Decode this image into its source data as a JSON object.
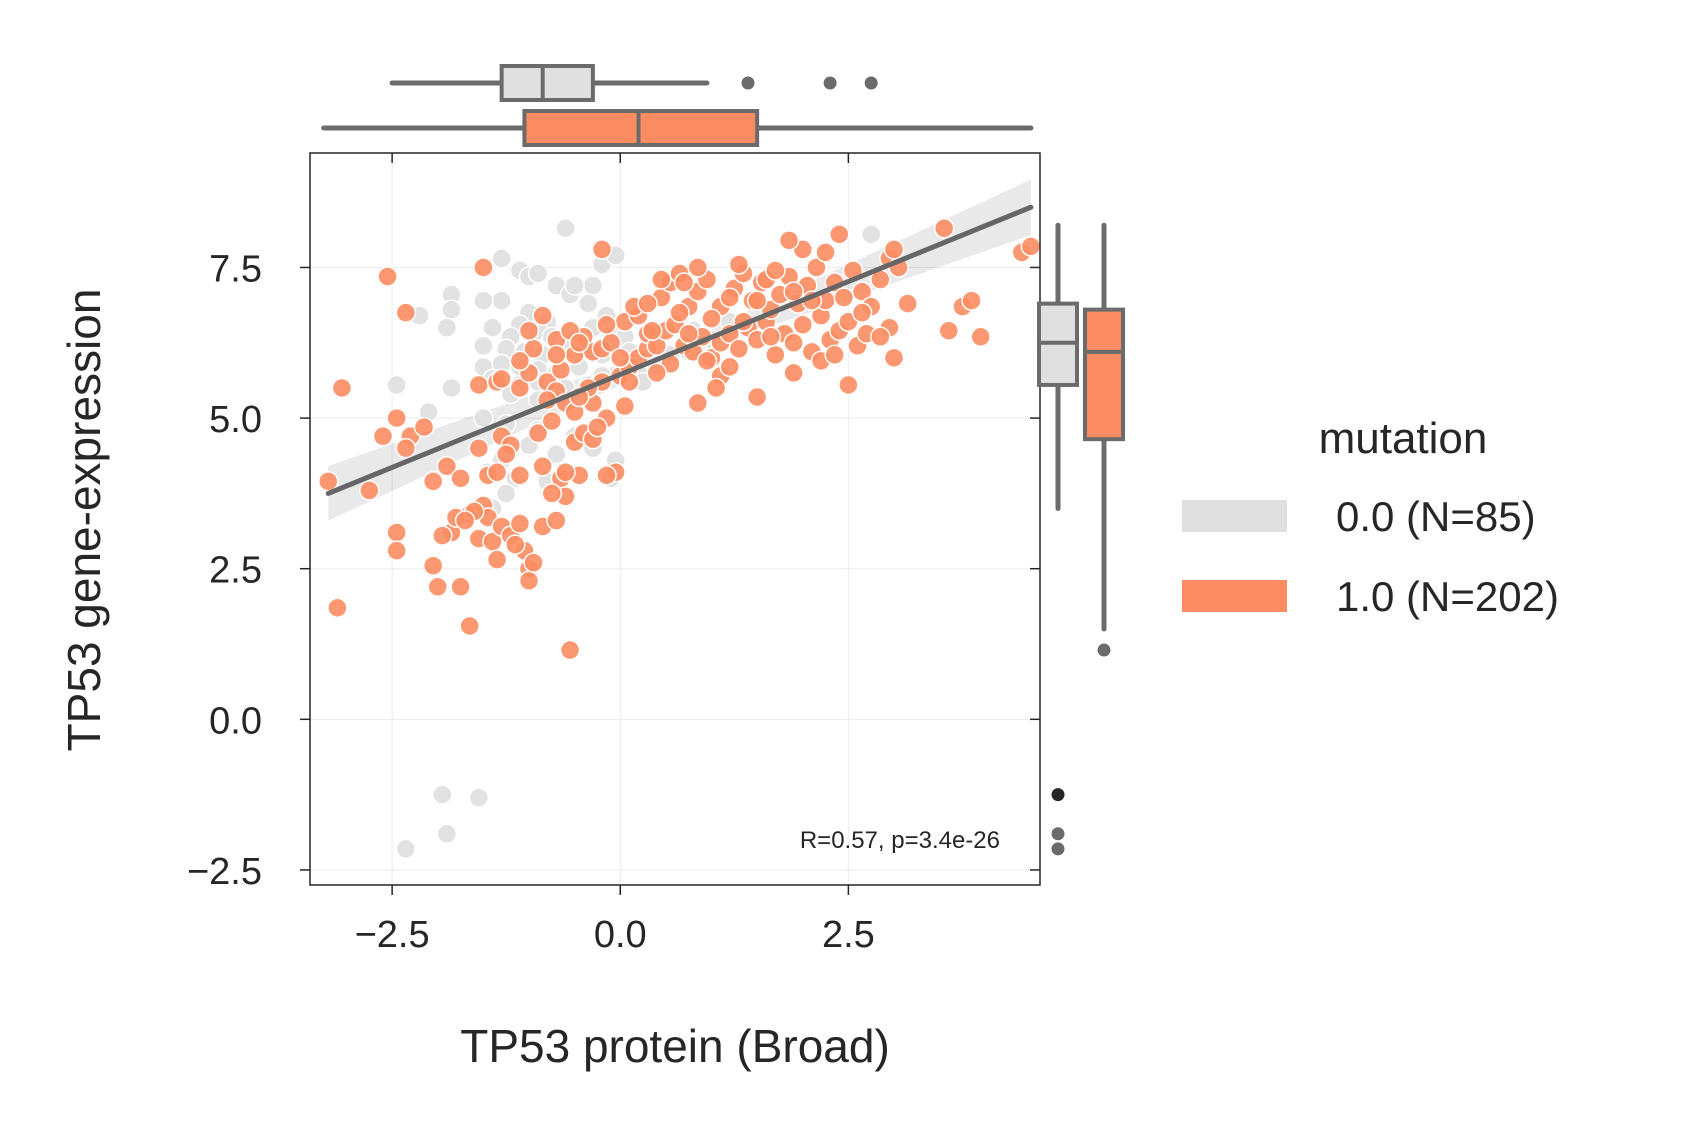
{
  "chart_data": {
    "type": "scatter",
    "xlabel": "TP53 protein (Broad)",
    "ylabel": "TP53 gene-expression",
    "xlim": [
      -3.4,
      4.6
    ],
    "ylim": [
      -2.75,
      9.4
    ],
    "xticks": [
      -2.5,
      0.0,
      2.5
    ],
    "xtick_labels": [
      "−2.5",
      "0.0",
      "2.5"
    ],
    "yticks": [
      -2.5,
      0.0,
      2.5,
      5.0,
      7.5
    ],
    "ytick_labels": [
      "−2.5",
      "0.0",
      "2.5",
      "5.0",
      "7.5"
    ],
    "grid": true,
    "annotation": "R=0.57, p=3.4e-26",
    "legend": {
      "title": "mutation",
      "placement": "right",
      "entries": [
        {
          "label": "0.0 (N=85)",
          "color": "#e0e0e0"
        },
        {
          "label": "1.0 (N=202)",
          "color": "#fc8d62"
        }
      ]
    },
    "regression": {
      "x": [
        -3.2,
        4.5
      ],
      "y": [
        3.75,
        8.5
      ],
      "color": "#666666"
    },
    "series": [
      {
        "name": "0.0 (N=85)",
        "color": "#e0e0e0",
        "points": [
          [
            -0.6,
            8.15
          ],
          [
            -0.2,
            7.55
          ],
          [
            -0.05,
            7.7
          ],
          [
            -1.3,
            7.65
          ],
          [
            -1.1,
            7.45
          ],
          [
            -1.0,
            7.35
          ],
          [
            -0.9,
            7.4
          ],
          [
            -0.7,
            7.2
          ],
          [
            -0.55,
            7.05
          ],
          [
            -1.85,
            7.05
          ],
          [
            -1.3,
            6.95
          ],
          [
            -1.5,
            6.95
          ],
          [
            -0.3,
            7.2
          ],
          [
            -0.5,
            7.2
          ],
          [
            -1.85,
            6.8
          ],
          [
            -2.2,
            6.7
          ],
          [
            -1.0,
            6.75
          ],
          [
            -1.1,
            6.55
          ],
          [
            -0.8,
            6.6
          ],
          [
            -1.9,
            6.5
          ],
          [
            -1.4,
            6.5
          ],
          [
            -1.2,
            6.35
          ],
          [
            -0.9,
            6.45
          ],
          [
            -0.75,
            6.35
          ],
          [
            -0.5,
            6.3
          ],
          [
            -0.3,
            6.5
          ],
          [
            -0.1,
            6.4
          ],
          [
            0.05,
            6.35
          ],
          [
            -1.5,
            6.2
          ],
          [
            -1.25,
            6.15
          ],
          [
            -1.05,
            6.1
          ],
          [
            -0.85,
            6.05
          ],
          [
            -0.6,
            6.15
          ],
          [
            -0.4,
            6.05
          ],
          [
            -0.2,
            6.05
          ],
          [
            0.1,
            6.1
          ],
          [
            0.35,
            5.95
          ],
          [
            0.55,
            6.05
          ],
          [
            0.75,
            6.1
          ],
          [
            1.0,
            6.3
          ],
          [
            -1.5,
            5.85
          ],
          [
            -1.3,
            5.9
          ],
          [
            -1.1,
            5.85
          ],
          [
            -0.9,
            5.8
          ],
          [
            -0.7,
            5.75
          ],
          [
            -0.45,
            5.85
          ],
          [
            -0.2,
            5.7
          ],
          [
            0.2,
            5.75
          ],
          [
            0.4,
            5.85
          ],
          [
            -1.4,
            5.65
          ],
          [
            -1.1,
            5.55
          ],
          [
            -0.9,
            5.6
          ],
          [
            -0.6,
            5.5
          ],
          [
            -0.35,
            5.55
          ],
          [
            0.25,
            5.6
          ],
          [
            -2.45,
            5.55
          ],
          [
            -1.85,
            5.5
          ],
          [
            -1.2,
            5.4
          ],
          [
            -0.9,
            5.3
          ],
          [
            -0.6,
            5.25
          ],
          [
            -2.1,
            5.1
          ],
          [
            -1.5,
            5.0
          ],
          [
            -1.25,
            4.9
          ],
          [
            -0.9,
            4.8
          ],
          [
            -0.5,
            4.7
          ],
          [
            -1.0,
            4.55
          ],
          [
            -0.7,
            4.4
          ],
          [
            -0.3,
            4.5
          ],
          [
            -1.3,
            4.3
          ],
          [
            -0.05,
            4.3
          ],
          [
            -1.45,
            4.1
          ],
          [
            -1.15,
            4.0
          ],
          [
            -0.8,
            3.95
          ],
          [
            -0.1,
            4.0
          ],
          [
            -1.25,
            3.75
          ],
          [
            -1.4,
            3.5
          ],
          [
            1.2,
            6.6
          ],
          [
            0.8,
            6.45
          ],
          [
            -0.15,
            6.7
          ],
          [
            -0.35,
            6.9
          ],
          [
            -1.95,
            -1.25
          ],
          [
            -1.55,
            -1.3
          ],
          [
            -1.9,
            -1.9
          ],
          [
            -2.35,
            -2.15
          ],
          [
            2.75,
            8.05
          ]
        ]
      },
      {
        "name": "1.0 (N=202)",
        "color": "#fc8d62",
        "points": [
          [
            -3.05,
            5.5
          ],
          [
            -2.35,
            6.75
          ],
          [
            -3.2,
            3.95
          ],
          [
            -2.75,
            3.8
          ],
          [
            -2.45,
            3.1
          ],
          [
            -2.45,
            2.8
          ],
          [
            -3.1,
            1.85
          ],
          [
            -2.45,
            5.0
          ],
          [
            -2.3,
            4.7
          ],
          [
            -2.15,
            4.85
          ],
          [
            -2.05,
            2.55
          ],
          [
            -2.0,
            2.2
          ],
          [
            -1.75,
            2.2
          ],
          [
            -1.65,
            1.55
          ],
          [
            -2.05,
            3.95
          ],
          [
            -1.9,
            4.2
          ],
          [
            -1.75,
            4.0
          ],
          [
            -1.85,
            3.1
          ],
          [
            -1.65,
            3.4
          ],
          [
            -1.55,
            3.0
          ],
          [
            -1.5,
            3.55
          ],
          [
            -1.45,
            3.35
          ],
          [
            -1.4,
            2.95
          ],
          [
            -1.35,
            2.65
          ],
          [
            -1.3,
            3.2
          ],
          [
            -1.2,
            3.05
          ],
          [
            -1.05,
            2.8
          ],
          [
            -1.0,
            2.5
          ],
          [
            -1.0,
            2.3
          ],
          [
            -0.85,
            3.2
          ],
          [
            -1.55,
            4.5
          ],
          [
            -1.45,
            4.05
          ],
          [
            -1.35,
            4.1
          ],
          [
            -1.3,
            4.7
          ],
          [
            -1.2,
            4.55
          ],
          [
            -1.1,
            4.05
          ],
          [
            -1.55,
            5.55
          ],
          [
            -1.35,
            5.6
          ],
          [
            -1.1,
            5.5
          ],
          [
            -1.0,
            5.75
          ],
          [
            -0.8,
            5.6
          ],
          [
            -0.7,
            5.45
          ],
          [
            -0.6,
            5.25
          ],
          [
            -0.5,
            5.1
          ],
          [
            -0.9,
            4.75
          ],
          [
            -0.75,
            4.95
          ],
          [
            -0.65,
            4.0
          ],
          [
            -0.6,
            3.7
          ],
          [
            -0.7,
            3.3
          ],
          [
            -0.45,
            4.05
          ],
          [
            -0.5,
            4.6
          ],
          [
            -0.4,
            4.75
          ],
          [
            -0.3,
            4.65
          ],
          [
            -0.15,
            5.0
          ],
          [
            -0.3,
            5.25
          ],
          [
            -0.2,
            5.6
          ],
          [
            0.0,
            5.7
          ],
          [
            0.1,
            5.85
          ],
          [
            0.2,
            6.0
          ],
          [
            0.3,
            6.15
          ],
          [
            -0.05,
            4.1
          ],
          [
            -0.15,
            4.05
          ],
          [
            -0.55,
            1.15
          ],
          [
            -1.5,
            7.5
          ],
          [
            -2.55,
            7.35
          ],
          [
            -0.7,
            6.3
          ],
          [
            -0.85,
            6.7
          ],
          [
            -0.5,
            6.05
          ],
          [
            -0.4,
            6.35
          ],
          [
            -0.3,
            6.1
          ],
          [
            -0.2,
            6.15
          ],
          [
            -0.1,
            6.25
          ],
          [
            0.0,
            6.0
          ],
          [
            0.05,
            6.6
          ],
          [
            0.2,
            6.7
          ],
          [
            0.3,
            6.4
          ],
          [
            0.4,
            6.2
          ],
          [
            0.5,
            6.45
          ],
          [
            0.6,
            6.55
          ],
          [
            0.7,
            6.2
          ],
          [
            0.8,
            6.1
          ],
          [
            0.9,
            6.35
          ],
          [
            1.0,
            6.0
          ],
          [
            1.1,
            6.25
          ],
          [
            1.2,
            6.4
          ],
          [
            1.3,
            6.15
          ],
          [
            1.4,
            6.5
          ],
          [
            1.5,
            6.3
          ],
          [
            1.6,
            6.6
          ],
          [
            1.7,
            6.05
          ],
          [
            1.8,
            6.4
          ],
          [
            1.9,
            6.25
          ],
          [
            2.0,
            6.55
          ],
          [
            2.1,
            6.1
          ],
          [
            2.2,
            6.7
          ],
          [
            2.3,
            6.3
          ],
          [
            2.4,
            6.45
          ],
          [
            2.5,
            6.6
          ],
          [
            2.6,
            6.2
          ],
          [
            2.7,
            6.4
          ],
          [
            0.45,
            7.0
          ],
          [
            0.55,
            7.25
          ],
          [
            0.65,
            7.4
          ],
          [
            0.75,
            6.85
          ],
          [
            0.85,
            7.1
          ],
          [
            0.95,
            7.3
          ],
          [
            1.1,
            6.85
          ],
          [
            1.25,
            7.15
          ],
          [
            1.35,
            7.4
          ],
          [
            1.45,
            6.95
          ],
          [
            1.55,
            7.25
          ],
          [
            1.65,
            6.8
          ],
          [
            1.75,
            7.05
          ],
          [
            1.85,
            7.35
          ],
          [
            1.95,
            6.9
          ],
          [
            2.05,
            7.2
          ],
          [
            2.15,
            7.5
          ],
          [
            2.25,
            6.95
          ],
          [
            2.35,
            7.25
          ],
          [
            2.45,
            7.0
          ],
          [
            2.55,
            7.45
          ],
          [
            2.65,
            7.1
          ],
          [
            2.75,
            6.85
          ],
          [
            2.85,
            7.3
          ],
          [
            2.95,
            7.65
          ],
          [
            3.05,
            7.5
          ],
          [
            3.15,
            6.9
          ],
          [
            3.55,
            8.15
          ],
          [
            3.6,
            6.45
          ],
          [
            3.75,
            6.85
          ],
          [
            3.85,
            6.95
          ],
          [
            3.95,
            6.35
          ],
          [
            4.4,
            7.75
          ],
          [
            4.5,
            7.85
          ],
          [
            2.0,
            7.8
          ],
          [
            1.85,
            7.95
          ],
          [
            2.25,
            7.75
          ],
          [
            2.4,
            8.05
          ],
          [
            3.0,
            7.8
          ],
          [
            2.95,
            6.5
          ],
          [
            2.85,
            6.35
          ],
          [
            3.0,
            6.0
          ],
          [
            2.5,
            5.55
          ],
          [
            1.9,
            5.75
          ],
          [
            1.5,
            5.35
          ],
          [
            1.1,
            5.7
          ],
          [
            0.85,
            5.25
          ],
          [
            1.05,
            5.5
          ],
          [
            0.55,
            5.9
          ],
          [
            0.35,
            6.45
          ],
          [
            0.15,
            6.85
          ],
          [
            -0.2,
            7.8
          ],
          [
            0.45,
            7.3
          ],
          [
            0.7,
            7.25
          ],
          [
            0.85,
            7.5
          ],
          [
            1.3,
            7.55
          ],
          [
            1.6,
            7.3
          ],
          [
            1.9,
            7.1
          ],
          [
            -0.55,
            6.45
          ],
          [
            -0.95,
            6.15
          ],
          [
            -0.65,
            5.8
          ],
          [
            -0.35,
            5.5
          ],
          [
            0.1,
            5.6
          ],
          [
            0.4,
            5.75
          ],
          [
            -1.0,
            6.45
          ],
          [
            -1.3,
            5.65
          ],
          [
            -0.8,
            5.3
          ],
          [
            -0.45,
            5.35
          ],
          [
            -0.25,
            4.85
          ],
          [
            0.05,
            5.2
          ],
          [
            1.5,
            6.95
          ],
          [
            1.7,
            7.45
          ],
          [
            1.2,
            7.0
          ],
          [
            1.0,
            6.65
          ],
          [
            0.65,
            6.75
          ],
          [
            1.35,
            6.6
          ],
          [
            2.1,
            6.95
          ],
          [
            2.65,
            6.75
          ],
          [
            2.2,
            5.95
          ],
          [
            2.35,
            6.05
          ],
          [
            1.65,
            6.35
          ],
          [
            1.2,
            5.85
          ],
          [
            0.95,
            5.95
          ],
          [
            0.75,
            6.4
          ],
          [
            0.3,
            6.9
          ],
          [
            -0.15,
            6.55
          ],
          [
            -0.45,
            6.25
          ],
          [
            -0.7,
            6.05
          ],
          [
            -1.1,
            5.95
          ],
          [
            -1.25,
            4.4
          ],
          [
            -1.6,
            3.45
          ],
          [
            -1.8,
            3.35
          ],
          [
            -1.95,
            3.05
          ],
          [
            -1.7,
            3.3
          ],
          [
            -0.75,
            3.75
          ],
          [
            -0.6,
            4.1
          ],
          [
            -0.85,
            4.2
          ],
          [
            -1.1,
            3.25
          ],
          [
            -1.15,
            2.9
          ],
          [
            -2.6,
            4.7
          ],
          [
            -2.35,
            4.5
          ],
          [
            -0.95,
            2.6
          ]
        ]
      }
    ],
    "marginal_boxes": {
      "x": [
        {
          "name": "0.0 (N=85)",
          "whisker_low": -2.5,
          "q1": -1.3,
          "median": -0.85,
          "q3": -0.3,
          "whisker_high": 0.95,
          "outliers": [
            1.4,
            2.3,
            2.75
          ]
        },
        {
          "name": "1.0 (N=202)",
          "whisker_low": -3.25,
          "q1": -1.05,
          "median": 0.2,
          "q3": 1.5,
          "whisker_high": 4.5,
          "outliers": []
        }
      ],
      "y": [
        {
          "name": "0.0 (N=85)",
          "whisker_low": 3.5,
          "q1": 5.55,
          "median": 6.25,
          "q3": 6.9,
          "whisker_high": 8.2,
          "outliers": [
            -1.25,
            -1.9,
            -2.15
          ]
        },
        {
          "name": "1.0 (N=202)",
          "whisker_low": 1.5,
          "q1": 4.65,
          "median": 6.1,
          "q3": 6.8,
          "whisker_high": 8.2,
          "outliers": [
            1.15
          ]
        }
      ]
    }
  }
}
